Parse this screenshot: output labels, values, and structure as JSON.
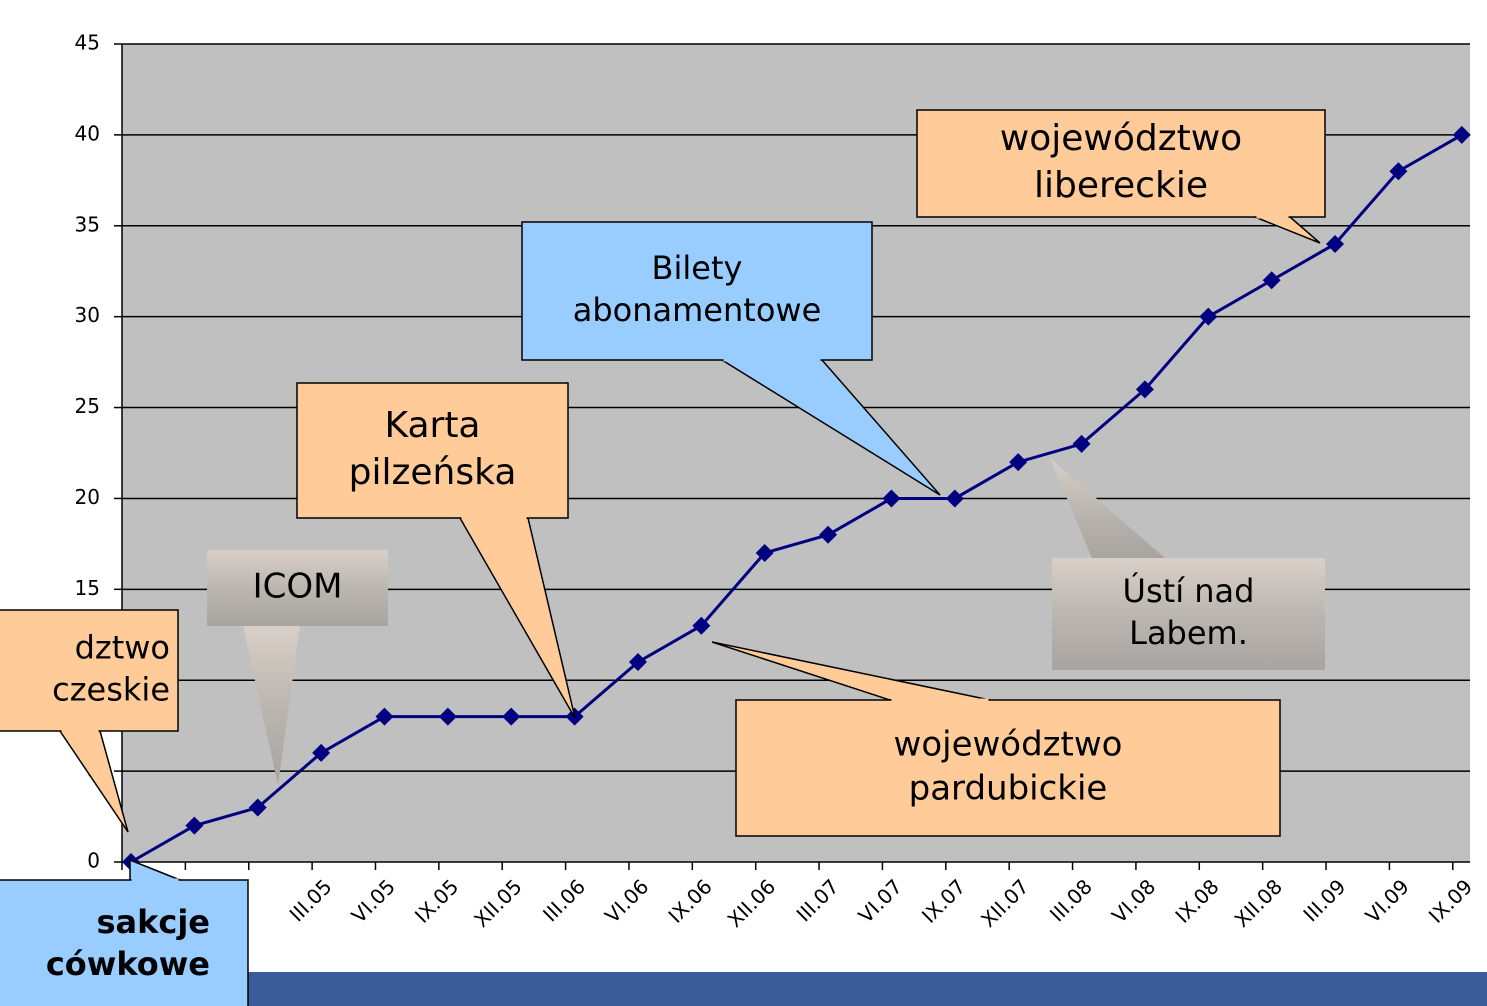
{
  "chart_data": {
    "type": "line",
    "categories": [
      null,
      null,
      null,
      "III.05",
      "VI.05",
      "IX.05",
      "XII.05",
      "III.06",
      "VI.06",
      "IX.06",
      "XII.06",
      "III.07",
      "VI.07",
      "IX.07",
      "XII.07",
      "III.08",
      "VI.08",
      "IX.08",
      "XII.08",
      "III.09",
      "VI.09",
      "IX.09"
    ],
    "series": [
      {
        "name": null,
        "color": "#000080",
        "values": [
          0,
          2,
          3,
          6,
          8,
          8,
          8,
          8,
          11,
          13,
          17,
          18,
          20,
          20,
          22,
          23,
          26,
          30,
          32,
          34,
          38,
          40
        ]
      }
    ],
    "ylim": [
      0,
      45
    ],
    "yticks": [
      0,
      5,
      10,
      15,
      20,
      25,
      30,
      35,
      40,
      45
    ],
    "grid": true,
    "annotations": [
      {
        "lines": [
          "województwo",
          "libereckie"
        ]
      },
      {
        "lines": [
          "Bilety",
          "abonamentowe"
        ]
      },
      {
        "lines": [
          "Karta",
          "pilzeńska"
        ]
      },
      {
        "lines": [
          "ICOM"
        ]
      },
      {
        "lines": [
          "Ústí nad",
          "Labem."
        ]
      },
      {
        "lines": [
          "województwo",
          "pardubickie"
        ]
      },
      {
        "lines": [
          "dztwo",
          "czeskie"
        ]
      },
      {
        "lines": [
          "sakcje",
          "ców­kowe"
        ]
      }
    ]
  }
}
